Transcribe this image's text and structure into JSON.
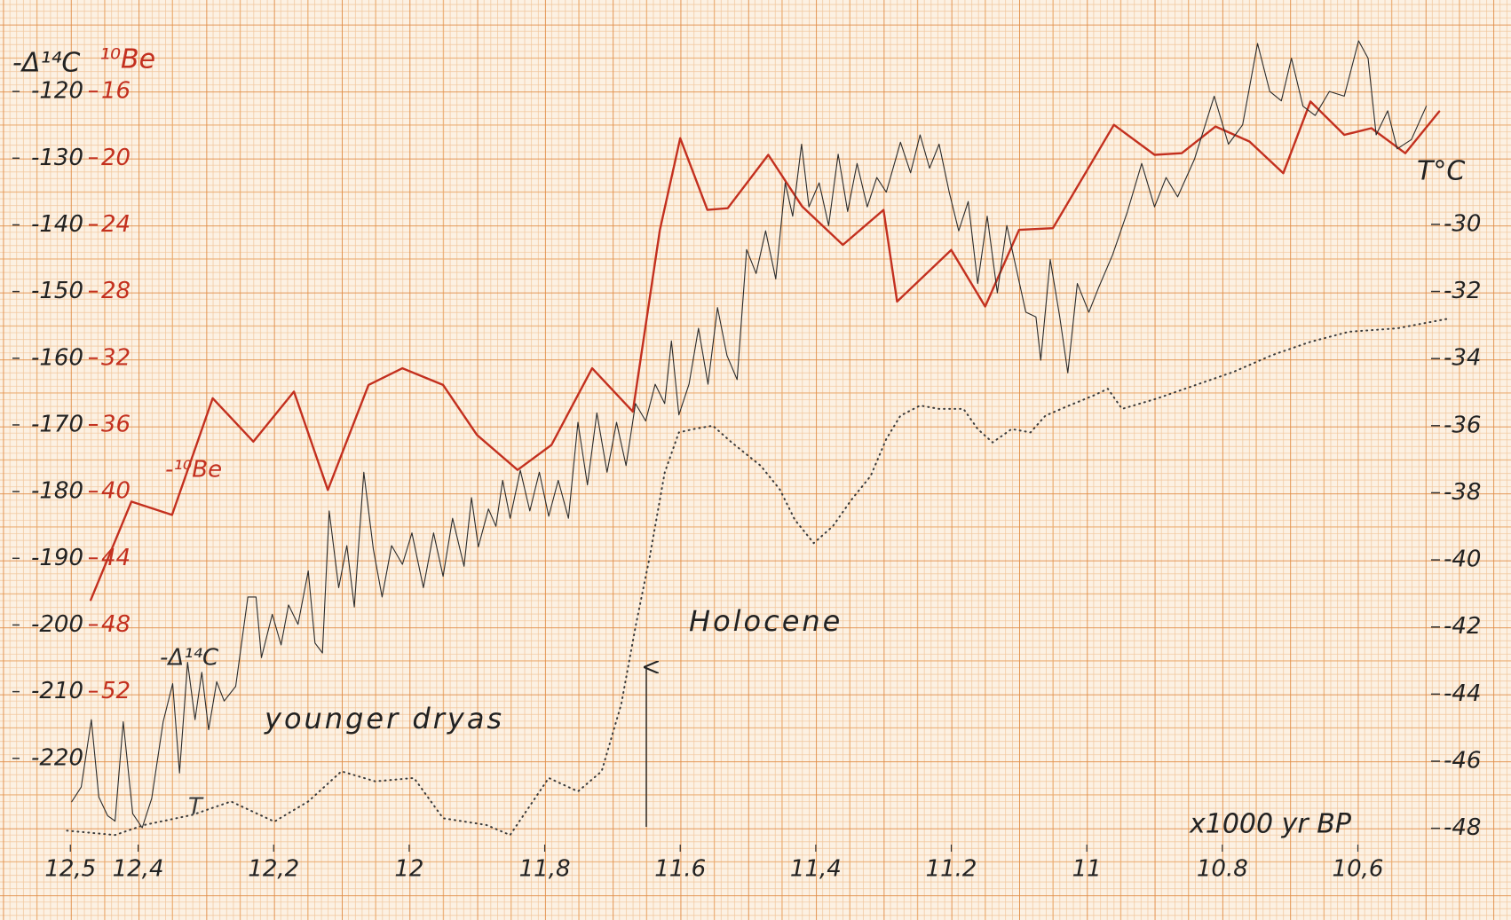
{
  "chart_data": {
    "type": "line",
    "y_label": "-Δ¹⁴C",
    "y2_label": "¹⁰Be",
    "y3_label": "T°C",
    "x_label": "x1000 yr BP",
    "annotations": [
      "younger dryas",
      "Holocene"
    ],
    "xlim": [
      12.52,
      10.45
    ],
    "xticks": [
      {
        "value": 12.5,
        "label": "12,5"
      },
      {
        "value": 12.4,
        "label": "12,4"
      },
      {
        "value": 12.2,
        "label": "12,2"
      },
      12,
      {
        "value": 11.8,
        "label": "11,8"
      },
      11.6,
      {
        "value": 11.4,
        "label": "11,4"
      },
      11.2,
      11,
      10.8,
      {
        "value": 10.6,
        "label": "10,6"
      }
    ],
    "ylim": [
      -232,
      -112
    ],
    "yticks": [
      -120,
      -130,
      -140,
      -150,
      -160,
      -170,
      -180,
      -190,
      -200,
      -210,
      -220
    ],
    "y2lim": [
      60.8,
      12.8
    ],
    "y2ticks": [
      16,
      20,
      24,
      28,
      32,
      36,
      40,
      44,
      48,
      52
    ],
    "y3lim": [
      -48.3,
      -24.45
    ],
    "y3ticks": [
      -30,
      -32,
      -34,
      -36,
      -38,
      -40,
      -42,
      -44,
      -46,
      -48
    ],
    "series": [
      {
        "name": "-¹⁰Be",
        "color": "#c3301f",
        "axis": "y2",
        "style": "solid",
        "x": [
          12.47,
          12.41,
          12.35,
          12.29,
          12.23,
          12.17,
          12.12,
          12.06,
          12.01,
          11.95,
          11.9,
          11.84,
          11.79,
          11.73,
          11.67,
          11.63,
          11.6,
          11.56,
          11.53,
          11.47,
          11.42,
          11.36,
          11.3,
          11.28,
          11.2,
          11.15,
          11.1,
          11.05,
          10.96,
          10.9,
          10.86,
          10.81,
          10.76,
          10.71,
          10.67,
          10.62,
          10.58,
          10.53,
          10.48
        ],
        "values": [
          46.5,
          40.6,
          41.4,
          34.4,
          37.0,
          34.0,
          39.9,
          33.6,
          32.6,
          33.6,
          36.6,
          38.7,
          37.2,
          32.6,
          35.2,
          24.3,
          18.8,
          23.1,
          23.0,
          19.8,
          22.9,
          25.2,
          23.1,
          28.6,
          25.5,
          28.9,
          24.3,
          24.2,
          18.0,
          19.8,
          19.7,
          18.1,
          19.0,
          20.9,
          16.6,
          18.6,
          18.2,
          19.7,
          17.2
        ]
      },
      {
        "name": "-Δ¹⁴C",
        "color": "#2b2b2b",
        "axis": "y",
        "style": "solid",
        "x": [
          12.498,
          12.484,
          12.469,
          12.458,
          12.445,
          12.434,
          12.422,
          12.408,
          12.394,
          12.38,
          12.363,
          12.349,
          12.339,
          12.327,
          12.316,
          12.306,
          12.296,
          12.284,
          12.273,
          12.256,
          12.238,
          12.226,
          12.218,
          12.202,
          12.189,
          12.178,
          12.164,
          12.149,
          12.139,
          12.128,
          12.118,
          12.104,
          12.092,
          12.081,
          12.067,
          12.053,
          12.04,
          12.026,
          12.01,
          11.996,
          11.979,
          11.964,
          11.95,
          11.936,
          11.919,
          11.908,
          11.898,
          11.883,
          11.872,
          11.862,
          11.851,
          11.836,
          11.822,
          11.808,
          11.794,
          11.78,
          11.765,
          11.751,
          11.737,
          11.723,
          11.708,
          11.694,
          11.68,
          11.666,
          11.651,
          11.637,
          11.623,
          11.613,
          11.602,
          11.587,
          11.573,
          11.559,
          11.545,
          11.531,
          11.516,
          11.502,
          11.488,
          11.474,
          11.459,
          11.445,
          11.434,
          11.421,
          11.41,
          11.395,
          11.381,
          11.367,
          11.353,
          11.339,
          11.324,
          11.31,
          11.296,
          11.275,
          11.26,
          11.246,
          11.232,
          11.218,
          11.203,
          11.189,
          11.175,
          11.161,
          11.147,
          11.132,
          11.118,
          11.104,
          11.09,
          11.075,
          11.068,
          11.054,
          11.04,
          11.028,
          11.014,
          10.997,
          10.983,
          10.962,
          10.94,
          10.919,
          10.9,
          10.883,
          10.866,
          10.841,
          10.812,
          10.791,
          10.77,
          10.748,
          10.73,
          10.713,
          10.698,
          10.681,
          10.663,
          10.642,
          10.62,
          10.599,
          10.585,
          10.573,
          10.556,
          10.542,
          10.521,
          10.499
        ],
        "values": [
          -226.5,
          -224.3,
          -214.2,
          -225.8,
          -228.6,
          -229.4,
          -214.5,
          -228.3,
          -230.4,
          -226.0,
          -214.5,
          -208.8,
          -222.2,
          -205.6,
          -214.2,
          -207.1,
          -215.7,
          -208.5,
          -211.4,
          -209.2,
          -195.8,
          -195.8,
          -204.9,
          -198.4,
          -203.0,
          -197.0,
          -199.9,
          -191.9,
          -202.7,
          -204.2,
          -182.9,
          -194.4,
          -188.1,
          -197.3,
          -177.1,
          -188.6,
          -195.8,
          -188.1,
          -190.9,
          -186.2,
          -194.4,
          -186.2,
          -192.7,
          -184.0,
          -191.2,
          -180.9,
          -188.3,
          -182.6,
          -185.2,
          -178.3,
          -184.0,
          -176.8,
          -182.9,
          -177.1,
          -183.7,
          -178.3,
          -184.0,
          -169.6,
          -179.0,
          -168.2,
          -177.1,
          -169.6,
          -176.1,
          -166.8,
          -169.4,
          -163.9,
          -166.8,
          -157.4,
          -168.5,
          -163.9,
          -155.5,
          -163.9,
          -152.4,
          -159.6,
          -163.2,
          -143.7,
          -147.3,
          -140.9,
          -148.1,
          -133.7,
          -138.7,
          -127.9,
          -137.3,
          -133.7,
          -140.1,
          -129.4,
          -138.0,
          -130.8,
          -137.3,
          -132.9,
          -135.1,
          -127.6,
          -132.2,
          -126.5,
          -131.5,
          -127.9,
          -135.1,
          -140.9,
          -136.5,
          -148.8,
          -138.7,
          -150.2,
          -140.1,
          -146.6,
          -153.1,
          -153.8,
          -160.3,
          -145.2,
          -153.8,
          -162.2,
          -148.8,
          -153.1,
          -149.5,
          -144.5,
          -138.0,
          -130.8,
          -137.3,
          -132.9,
          -135.8,
          -130.1,
          -120.7,
          -127.9,
          -125.0,
          -112.8,
          -120.0,
          -121.4,
          -115.0,
          -122.2,
          -123.6,
          -120.0,
          -120.7,
          -112.4,
          -115.0,
          -126.5,
          -122.9,
          -128.6,
          -127.2,
          -122.2
        ]
      },
      {
        "name": "T",
        "color": "#3a3a3a",
        "axis": "y3",
        "style": "dotted",
        "x": [
          12.505,
          12.434,
          12.391,
          12.32,
          12.263,
          12.199,
          12.149,
          12.1,
          12.05,
          11.993,
          11.95,
          11.886,
          11.851,
          11.794,
          11.751,
          11.716,
          11.687,
          11.666,
          11.645,
          11.623,
          11.602,
          11.58,
          11.552,
          11.524,
          11.481,
          11.453,
          11.431,
          11.403,
          11.375,
          11.347,
          11.319,
          11.296,
          11.275,
          11.246,
          11.218,
          11.182,
          11.161,
          11.139,
          11.111,
          11.083,
          11.061,
          11.026,
          10.99,
          10.969,
          10.948,
          10.898,
          10.841,
          10.784,
          10.727,
          10.67,
          10.613,
          10.542,
          10.464
        ],
        "values": [
          -48.07,
          -48.2,
          -47.9,
          -47.6,
          -47.2,
          -47.8,
          -47.2,
          -46.3,
          -46.6,
          -46.5,
          -47.7,
          -47.9,
          -48.2,
          -46.5,
          -46.9,
          -46.3,
          -44.3,
          -42.0,
          -39.9,
          -37.4,
          -36.2,
          -36.1,
          -36.0,
          -36.5,
          -37.2,
          -37.9,
          -38.8,
          -39.5,
          -39.0,
          -38.2,
          -37.5,
          -36.4,
          -35.7,
          -35.4,
          -35.5,
          -35.5,
          -36.1,
          -36.5,
          -36.1,
          -36.2,
          -35.7,
          -35.4,
          -35.1,
          -34.9,
          -35.5,
          -35.2,
          -34.8,
          -34.4,
          -33.9,
          -33.5,
          -33.2,
          -33.1,
          -32.8
        ]
      }
    ]
  }
}
